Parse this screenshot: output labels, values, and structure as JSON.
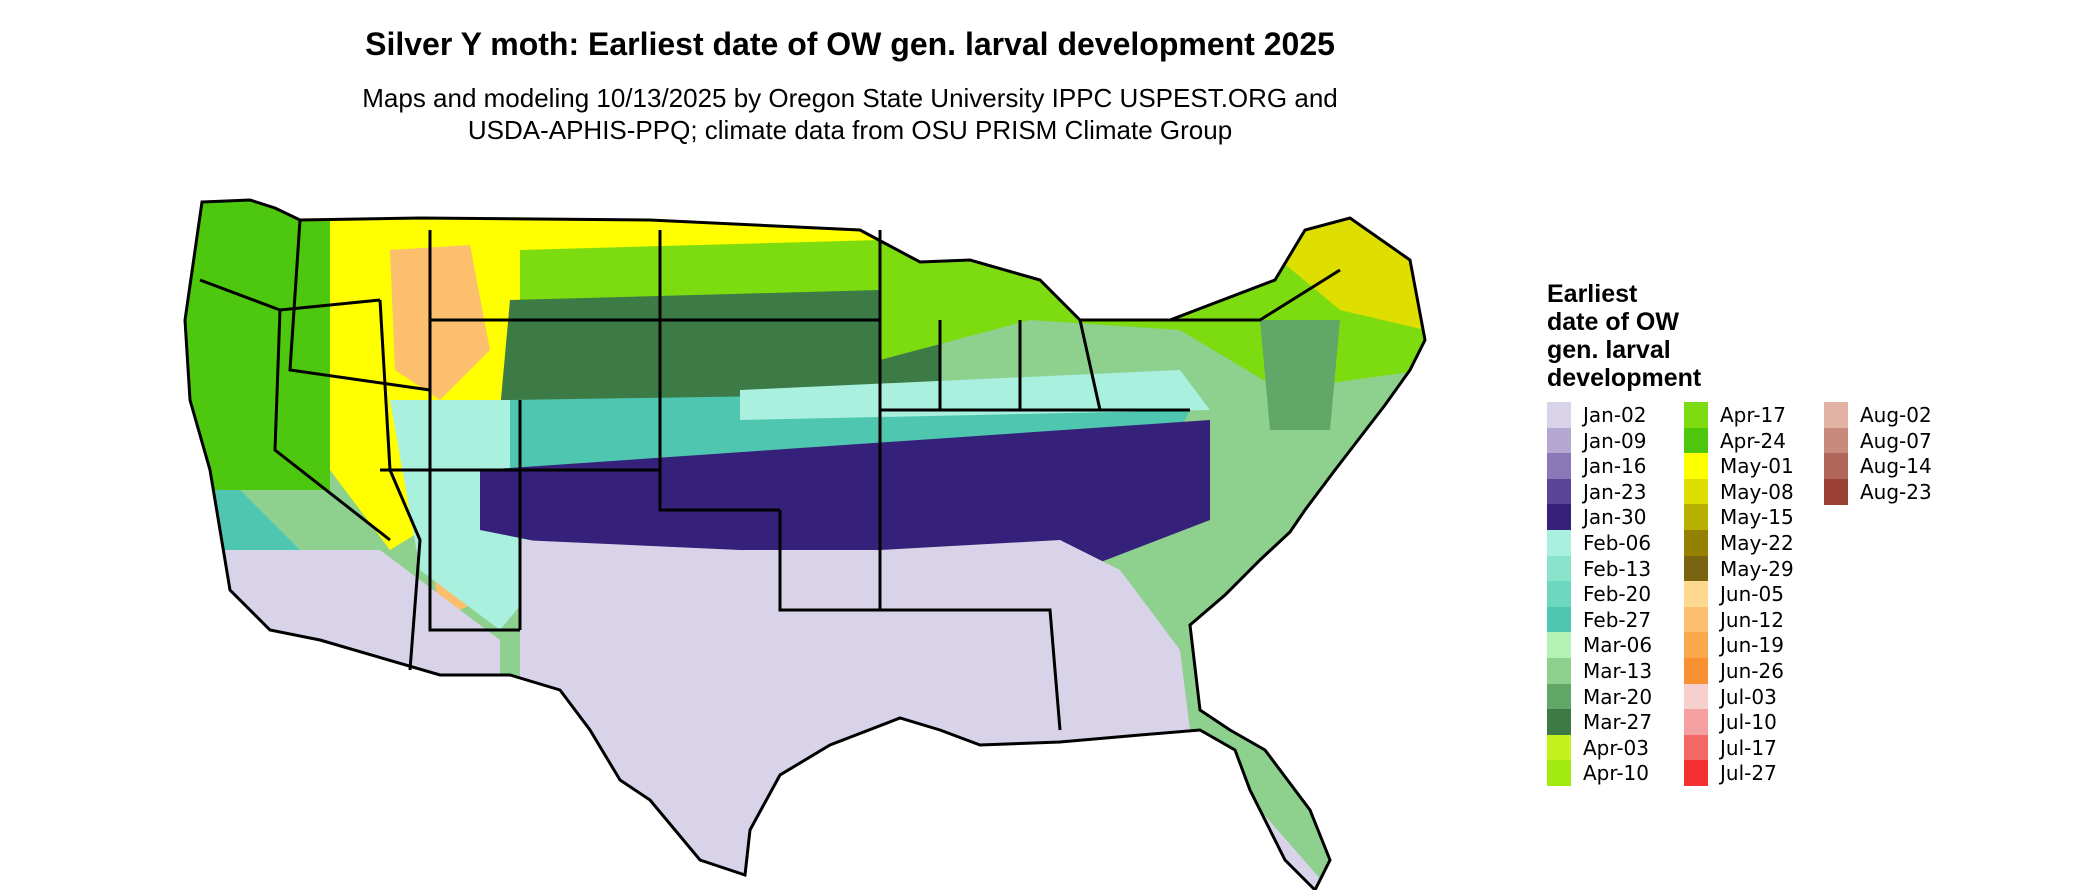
{
  "title": "Silver Y moth: Earliest date of OW gen. larval development 2025",
  "subtitle_line1": "Maps and modeling 10/13/2025 by Oregon State University IPPC USPEST.ORG and",
  "subtitle_line2": "USDA-APHIS-PPQ; climate data from OSU PRISM Climate Group",
  "legend": {
    "title_lines": [
      "Earliest",
      "date of OW",
      "gen. larval",
      "development"
    ],
    "items": [
      {
        "label": "Jan-02",
        "color": "#d9d3ea"
      },
      {
        "label": "Jan-09",
        "color": "#b4a8d2"
      },
      {
        "label": "Jan-16",
        "color": "#8a78b8"
      },
      {
        "label": "Jan-23",
        "color": "#5a4596"
      },
      {
        "label": "Jan-30",
        "color": "#35207a"
      },
      {
        "label": "Feb-06",
        "color": "#a9f0de"
      },
      {
        "label": "Feb-13",
        "color": "#8ae4cc"
      },
      {
        "label": "Feb-20",
        "color": "#6dd7bf"
      },
      {
        "label": "Feb-27",
        "color": "#4fc6b0"
      },
      {
        "label": "Mar-06",
        "color": "#b5f2b6"
      },
      {
        "label": "Mar-13",
        "color": "#8ed08e"
      },
      {
        "label": "Mar-20",
        "color": "#60a768"
      },
      {
        "label": "Mar-27",
        "color": "#3c7a46"
      },
      {
        "label": "Apr-03",
        "color": "#c5f21a"
      },
      {
        "label": "Apr-10",
        "color": "#a2ea10"
      },
      {
        "label": "Apr-17",
        "color": "#7ddc10"
      },
      {
        "label": "Apr-24",
        "color": "#4ec80e"
      },
      {
        "label": "May-01",
        "color": "#ffff00"
      },
      {
        "label": "May-08",
        "color": "#dede00"
      },
      {
        "label": "May-15",
        "color": "#b8b000"
      },
      {
        "label": "May-22",
        "color": "#958000"
      },
      {
        "label": "May-29",
        "color": "#7a6410"
      },
      {
        "label": "Jun-05",
        "color": "#fcd891"
      },
      {
        "label": "Jun-12",
        "color": "#fbbf6e"
      },
      {
        "label": "Jun-19",
        "color": "#f9a84c"
      },
      {
        "label": "Jun-26",
        "color": "#f79030"
      },
      {
        "label": "Jul-03",
        "color": "#f6cfcf"
      },
      {
        "label": "Jul-10",
        "color": "#f5a0a0"
      },
      {
        "label": "Jul-17",
        "color": "#f46868"
      },
      {
        "label": "Jul-27",
        "color": "#f53030"
      },
      {
        "label": "Aug-02",
        "color": "#e2b3a4"
      },
      {
        "label": "Aug-07",
        "color": "#c88a7c"
      },
      {
        "label": "Aug-14",
        "color": "#b06658"
      },
      {
        "label": "Aug-23",
        "color": "#9b4035"
      }
    ]
  },
  "map": {
    "name": "Contiguous United States degree-day model map",
    "region_colors": {
      "pacific_nw": "#4ec80e",
      "coastal_ca": "#4fc6b0",
      "desert_sw": "#d9d3ea",
      "sw_mid": "#a9f0de",
      "mountain_high": "#ffff00",
      "rockies_peaks": "#fbbf6e",
      "northern_plains": "#ffff00",
      "upper_midwest": "#7ddc10",
      "corn_belt": "#3c7a46",
      "mid_plains": "#8ed08e",
      "south_central": "#4fc6b0",
      "tn_ky": "#a9f0de",
      "gulf_deep_south": "#35207a",
      "gulf_coast": "#d9d3ea",
      "northeast": "#7ddc10",
      "new_england_north": "#dede00",
      "mid_atlantic": "#60a768",
      "state_border": "#000000"
    }
  }
}
